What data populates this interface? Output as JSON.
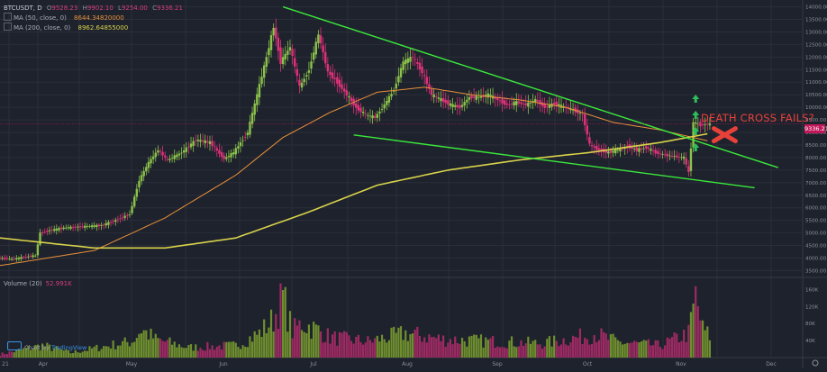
{
  "legend": {
    "symbol": "BTCUSDT, D",
    "ohlc": [
      {
        "key": "O",
        "value": "9528.23"
      },
      {
        "key": "H",
        "value": "9902.10"
      },
      {
        "key": "L",
        "value": "9254.00"
      },
      {
        "key": "C",
        "value": "9336.21"
      }
    ],
    "ma_lines": [
      {
        "label": "MA (50, close, 0)",
        "value": "8644.34820000",
        "color": "#e8913a"
      },
      {
        "label": "MA (200, close, 0)",
        "value": "8962.64855000",
        "color": "#d8d24a"
      }
    ]
  },
  "volume_legend": {
    "label": "Volume (20)",
    "value": "52.991K"
  },
  "annotation": "DEATH CROSS FAILS?",
  "last_price": "9336.21",
  "branding": {
    "prefix": "Chart by",
    "brand": "TradingView"
  },
  "colors": {
    "background": "#1e222d",
    "bull": "#8bc34a",
    "bear": "#e0317a",
    "ma50": "#e8913a",
    "ma200": "#d8d24a",
    "trendline": "#3be83b",
    "arrow": "#2fbf5a",
    "cross": "#e8413a",
    "price_line": "#c0185b"
  },
  "chart_data": {
    "type": "candlestick",
    "price_axis": {
      "ticks": [
        "14000.00",
        "13500.00",
        "13000.00",
        "12500.00",
        "12000.00",
        "11500.00",
        "11000.00",
        "10500.00",
        "10000.00",
        "9500.00",
        "9000.00",
        "8500.00",
        "8000.00",
        "7500.00",
        "7000.00",
        "6500.00",
        "6000.00",
        "5500.00",
        "5000.00",
        "4500.00",
        "4000.00",
        "3500.00"
      ],
      "range": [
        3300,
        14200
      ]
    },
    "volume_axis": {
      "ticks": [
        "160K",
        "120K",
        "80K",
        "40K"
      ],
      "range": [
        0,
        180000
      ]
    },
    "time_axis": {
      "ticks": [
        "21",
        "Apr",
        "May",
        "Jun",
        "Jul",
        "Aug",
        "Sep",
        "Oct",
        "Nov",
        "Dec"
      ]
    },
    "price_path": [
      [
        0,
        4000
      ],
      [
        6,
        3950
      ],
      [
        12,
        4050
      ],
      [
        16,
        4100
      ],
      [
        18,
        5000
      ],
      [
        22,
        5100
      ],
      [
        28,
        5200
      ],
      [
        36,
        5250
      ],
      [
        44,
        5300
      ],
      [
        50,
        5500
      ],
      [
        56,
        5750
      ],
      [
        60,
        7100
      ],
      [
        64,
        7800
      ],
      [
        68,
        8300
      ],
      [
        72,
        7900
      ],
      [
        78,
        8200
      ],
      [
        84,
        8700
      ],
      [
        90,
        8600
      ],
      [
        96,
        7950
      ],
      [
        100,
        8200
      ],
      [
        106,
        9000
      ],
      [
        110,
        10500
      ],
      [
        114,
        12000
      ],
      [
        117,
        13200
      ],
      [
        120,
        11800
      ],
      [
        124,
        12400
      ],
      [
        128,
        10800
      ],
      [
        132,
        11500
      ],
      [
        136,
        12900
      ],
      [
        140,
        11400
      ],
      [
        144,
        11000
      ],
      [
        148,
        10500
      ],
      [
        152,
        10000
      ],
      [
        156,
        9700
      ],
      [
        160,
        9600
      ],
      [
        164,
        10100
      ],
      [
        168,
        10700
      ],
      [
        172,
        11800
      ],
      [
        176,
        12000
      ],
      [
        180,
        11400
      ],
      [
        184,
        10500
      ],
      [
        188,
        10300
      ],
      [
        192,
        10100
      ],
      [
        196,
        10000
      ],
      [
        200,
        10400
      ],
      [
        204,
        10400
      ],
      [
        208,
        10500
      ],
      [
        212,
        10300
      ],
      [
        216,
        10100
      ],
      [
        220,
        10200
      ],
      [
        224,
        10100
      ],
      [
        228,
        10300
      ],
      [
        232,
        10000
      ],
      [
        236,
        10150
      ],
      [
        240,
        10000
      ],
      [
        244,
        9900
      ],
      [
        248,
        9700
      ],
      [
        251,
        8500
      ],
      [
        255,
        8300
      ],
      [
        259,
        8200
      ],
      [
        263,
        8300
      ],
      [
        267,
        8450
      ],
      [
        271,
        8300
      ],
      [
        275,
        8400
      ],
      [
        279,
        8200
      ],
      [
        283,
        8100
      ],
      [
        287,
        8050
      ],
      [
        291,
        8000
      ],
      [
        293,
        7400
      ],
      [
        295,
        9400
      ],
      [
        298,
        9300
      ],
      [
        301,
        9336
      ]
    ],
    "ma50_path": [
      [
        0,
        3700
      ],
      [
        40,
        4300
      ],
      [
        70,
        5600
      ],
      [
        100,
        7300
      ],
      [
        120,
        8800
      ],
      [
        140,
        9800
      ],
      [
        160,
        10600
      ],
      [
        180,
        10800
      ],
      [
        200,
        10500
      ],
      [
        220,
        10300
      ],
      [
        240,
        10000
      ],
      [
        260,
        9400
      ],
      [
        280,
        9100
      ],
      [
        301,
        8644
      ]
    ],
    "ma200_path": [
      [
        0,
        4800
      ],
      [
        40,
        4400
      ],
      [
        70,
        4400
      ],
      [
        100,
        4800
      ],
      [
        130,
        5800
      ],
      [
        160,
        6900
      ],
      [
        190,
        7500
      ],
      [
        220,
        7900
      ],
      [
        250,
        8200
      ],
      [
        280,
        8600
      ],
      [
        301,
        8962
      ]
    ],
    "trendlines": [
      {
        "from": [
          120,
          14000
        ],
        "to": [
          330,
          7600
        ]
      },
      {
        "from": [
          150,
          8900
        ],
        "to": [
          320,
          6800
        ]
      }
    ],
    "markers": {
      "up_arrows": [
        295,
        295,
        295,
        295
      ],
      "cross_day": 297
    },
    "volume_profile": [
      [
        0,
        8000
      ],
      [
        18,
        30000
      ],
      [
        30,
        12000
      ],
      [
        56,
        40000
      ],
      [
        60,
        70000
      ],
      [
        66,
        45000
      ],
      [
        80,
        25000
      ],
      [
        100,
        30000
      ],
      [
        110,
        60000
      ],
      [
        116,
        95000
      ],
      [
        120,
        150000
      ],
      [
        124,
        65000
      ],
      [
        128,
        85000
      ],
      [
        136,
        65000
      ],
      [
        140,
        50000
      ],
      [
        156,
        40000
      ],
      [
        172,
        60000
      ],
      [
        188,
        45000
      ],
      [
        210,
        40000
      ],
      [
        230,
        35000
      ],
      [
        250,
        55000
      ],
      [
        252,
        60000
      ],
      [
        262,
        38000
      ],
      [
        280,
        30000
      ],
      [
        292,
        60000
      ],
      [
        295,
        150000
      ],
      [
        298,
        70000
      ],
      [
        301,
        52991
      ]
    ]
  }
}
